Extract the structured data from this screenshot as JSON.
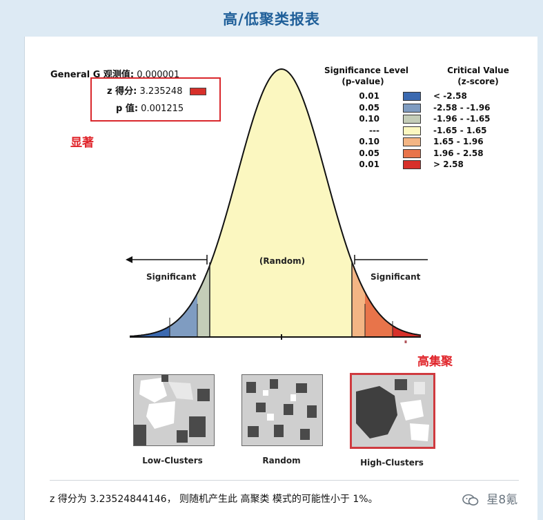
{
  "header": {
    "title": "高/低聚类报表"
  },
  "stats": {
    "general_g_label": "General G 观测值:",
    "general_g_value": "0.000001",
    "z_label": "z 得分:",
    "z_value": "3.235248",
    "p_label": "p 值:",
    "p_value": "0.001215"
  },
  "annotations": {
    "significant": "显著",
    "high_clusters": "高集聚"
  },
  "legend": {
    "level_header_1": "Significance Level",
    "level_header_2": "(p-value)",
    "value_header_1": "Critical Value",
    "value_header_2": "(z-score)",
    "rows": [
      {
        "p": "0.01",
        "z": "< -2.58",
        "color": "#3b69b0"
      },
      {
        "p": "0.05",
        "z": "-2.58 - -1.96",
        "color": "#7f9cc1"
      },
      {
        "p": "0.10",
        "z": "-1.96 - -1.65",
        "color": "#c4cdb8"
      },
      {
        "p": "---",
        "z": "-1.65 - 1.65",
        "color": "#fbf7c0"
      },
      {
        "p": "0.10",
        "z": "1.65 - 1.96",
        "color": "#f3b584"
      },
      {
        "p": "0.05",
        "z": "1.96 - 2.58",
        "color": "#e8744a"
      },
      {
        "p": "0.01",
        "z": "> 2.58",
        "color": "#d7302a"
      }
    ]
  },
  "curve": {
    "left_label": "Significant",
    "center_label": "(Random)",
    "right_label": "Significant"
  },
  "maps": {
    "low": "Low-Clusters",
    "random": "Random",
    "high": "High-Clusters"
  },
  "footer": {
    "text": "z 得分为 3.23524844146， 则随机产生此 高聚类 模式的可能性小于 1%。"
  },
  "watermark": {
    "text": "星8氪"
  }
}
